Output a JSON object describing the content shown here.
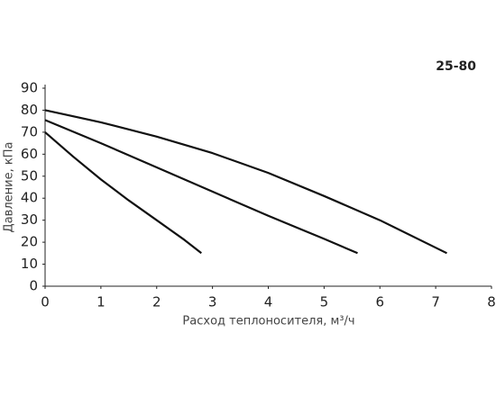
{
  "chart_data": {
    "type": "line",
    "title": "25-80",
    "xlabel": "Расход теплоносителя, м³/ч",
    "ylabel": "Давление, кПа",
    "xlim": [
      0,
      8
    ],
    "xticks": [
      0,
      1,
      2,
      3,
      4,
      5,
      6,
      7,
      8
    ],
    "ylim": [
      0,
      90
    ],
    "yticks": [
      0,
      10,
      20,
      30,
      40,
      50,
      60,
      70,
      80,
      90
    ],
    "grid": false,
    "series": [
      {
        "color": "#111111",
        "x": [
          0,
          0.5,
          1,
          1.5,
          2,
          2.5,
          2.8
        ],
        "values": [
          70,
          59,
          48.5,
          39,
          30,
          21,
          15
        ]
      },
      {
        "color": "#111111",
        "x": [
          0,
          1,
          2,
          3,
          4,
          5,
          5.6
        ],
        "values": [
          75.5,
          65,
          54,
          43,
          32,
          21.5,
          15
        ]
      },
      {
        "color": "#111111",
        "x": [
          0,
          1,
          2,
          3,
          4,
          5,
          6,
          7.2
        ],
        "values": [
          80,
          74.5,
          68,
          60.5,
          51.5,
          41,
          30,
          15
        ]
      }
    ]
  }
}
